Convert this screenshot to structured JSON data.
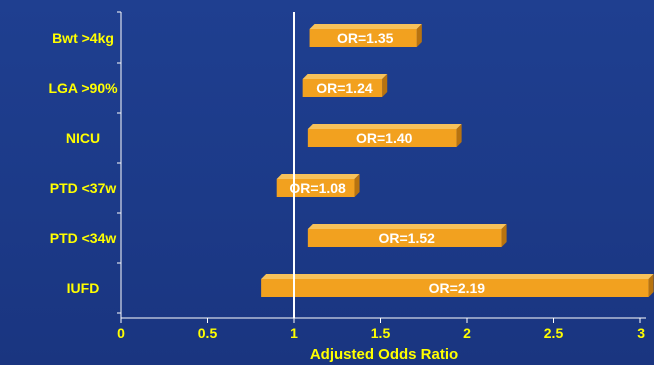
{
  "chart_data": {
    "type": "bar",
    "orientation": "horizontal",
    "title": "",
    "xlabel": "Adjusted Odds Ratio",
    "ylabel": "",
    "xlim": [
      0,
      3
    ],
    "x_ticks": [
      "0",
      "0.5",
      "1",
      "1.5",
      "2",
      "2.5",
      "3"
    ],
    "reference_line": 1,
    "grid": false,
    "categories": [
      "Bwt >4kg",
      "LGA >90%",
      "NICU",
      "PTD <37w",
      "PTD <34w",
      "IUFD"
    ],
    "bars": [
      {
        "category": "Bwt >4kg",
        "low": 1.09,
        "high": 1.71,
        "label": "OR=1.35"
      },
      {
        "category": "LGA >90%",
        "low": 1.05,
        "high": 1.51,
        "label": "OR=1.24"
      },
      {
        "category": "NICU",
        "low": 1.08,
        "high": 1.94,
        "label": "OR=1.40"
      },
      {
        "category": "PTD <37w",
        "low": 0.9,
        "high": 1.35,
        "label": "OR=1.08"
      },
      {
        "category": "PTD <34w",
        "low": 1.08,
        "high": 2.2,
        "label": "OR=1.52"
      },
      {
        "category": "IUFD",
        "low": 0.81,
        "high": 3.05,
        "label": "OR=2.19"
      }
    ],
    "colors": {
      "background": "#1c3a88",
      "bar_front": "#f2a11f",
      "bar_top": "#f7c25a",
      "bar_side": "#b8730f",
      "axis": "#ffffff",
      "reference_line": "#ffffff",
      "category_text": "#ffff00",
      "bar_label_text": "#ffffff"
    }
  }
}
